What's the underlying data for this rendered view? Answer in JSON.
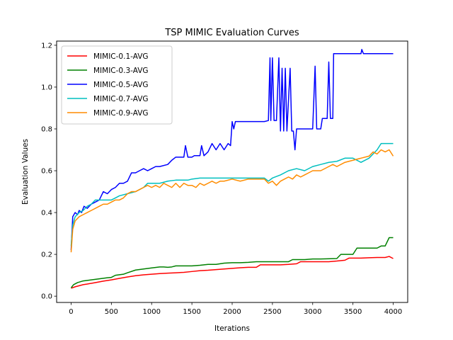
{
  "chart_data": {
    "type": "line",
    "title": "TSP MIMIC Evaluation Curves",
    "xlabel": "Iterations",
    "ylabel": "Evaluation Values",
    "xlim": [
      -180,
      4180
    ],
    "ylim": [
      -0.03,
      1.22
    ],
    "xticks": [
      0,
      500,
      1000,
      1500,
      2000,
      2500,
      3000,
      3500,
      4000
    ],
    "yticks": [
      0.0,
      0.2,
      0.4,
      0.6,
      0.8,
      1.0,
      1.2
    ],
    "xtick_labels": [
      "0",
      "500",
      "1000",
      "1500",
      "2000",
      "2500",
      "3000",
      "3500",
      "4000"
    ],
    "ytick_labels": [
      "0.0",
      "0.2",
      "0.4",
      "0.6",
      "0.8",
      "1.0",
      "1.2"
    ],
    "grid": false,
    "legend_position": "top-left",
    "series": [
      {
        "name": "MIMIC-0.1-AVG",
        "color": "#ff0000",
        "points": [
          [
            0,
            0.038
          ],
          [
            50,
            0.045
          ],
          [
            100,
            0.05
          ],
          [
            150,
            0.055
          ],
          [
            200,
            0.058
          ],
          [
            300,
            0.065
          ],
          [
            400,
            0.072
          ],
          [
            500,
            0.078
          ],
          [
            600,
            0.085
          ],
          [
            700,
            0.092
          ],
          [
            800,
            0.098
          ],
          [
            900,
            0.102
          ],
          [
            1000,
            0.105
          ],
          [
            1100,
            0.108
          ],
          [
            1200,
            0.11
          ],
          [
            1300,
            0.112
          ],
          [
            1400,
            0.114
          ],
          [
            1500,
            0.118
          ],
          [
            1600,
            0.122
          ],
          [
            1700,
            0.124
          ],
          [
            1800,
            0.127
          ],
          [
            1900,
            0.13
          ],
          [
            2000,
            0.133
          ],
          [
            2100,
            0.136
          ],
          [
            2200,
            0.138
          ],
          [
            2300,
            0.138
          ],
          [
            2350,
            0.15
          ],
          [
            2500,
            0.15
          ],
          [
            2600,
            0.15
          ],
          [
            2700,
            0.152
          ],
          [
            2800,
            0.155
          ],
          [
            2850,
            0.165
          ],
          [
            3000,
            0.165
          ],
          [
            3200,
            0.165
          ],
          [
            3300,
            0.168
          ],
          [
            3400,
            0.172
          ],
          [
            3450,
            0.182
          ],
          [
            3600,
            0.182
          ],
          [
            3700,
            0.184
          ],
          [
            3800,
            0.185
          ],
          [
            3900,
            0.185
          ],
          [
            3950,
            0.19
          ],
          [
            4000,
            0.18
          ]
        ]
      },
      {
        "name": "MIMIC-0.3-AVG",
        "color": "#008000",
        "points": [
          [
            0,
            0.04
          ],
          [
            30,
            0.055
          ],
          [
            80,
            0.065
          ],
          [
            150,
            0.073
          ],
          [
            250,
            0.078
          ],
          [
            350,
            0.083
          ],
          [
            450,
            0.088
          ],
          [
            500,
            0.09
          ],
          [
            550,
            0.1
          ],
          [
            650,
            0.105
          ],
          [
            700,
            0.112
          ],
          [
            800,
            0.125
          ],
          [
            900,
            0.13
          ],
          [
            1000,
            0.135
          ],
          [
            1100,
            0.14
          ],
          [
            1150,
            0.14
          ],
          [
            1200,
            0.138
          ],
          [
            1250,
            0.14
          ],
          [
            1300,
            0.145
          ],
          [
            1500,
            0.145
          ],
          [
            1600,
            0.148
          ],
          [
            1700,
            0.152
          ],
          [
            1800,
            0.152
          ],
          [
            1900,
            0.158
          ],
          [
            2000,
            0.16
          ],
          [
            2100,
            0.16
          ],
          [
            2200,
            0.162
          ],
          [
            2300,
            0.165
          ],
          [
            2500,
            0.165
          ],
          [
            2700,
            0.165
          ],
          [
            2750,
            0.175
          ],
          [
            2900,
            0.175
          ],
          [
            3000,
            0.178
          ],
          [
            3100,
            0.178
          ],
          [
            3300,
            0.18
          ],
          [
            3350,
            0.2
          ],
          [
            3500,
            0.2
          ],
          [
            3550,
            0.23
          ],
          [
            3700,
            0.23
          ],
          [
            3800,
            0.23
          ],
          [
            3850,
            0.24
          ],
          [
            3900,
            0.24
          ],
          [
            3950,
            0.28
          ],
          [
            4000,
            0.28
          ]
        ]
      },
      {
        "name": "MIMIC-0.5-AVG",
        "color": "#0000ff",
        "points": [
          [
            0,
            0.22
          ],
          [
            10,
            0.3
          ],
          [
            20,
            0.38
          ],
          [
            50,
            0.4
          ],
          [
            80,
            0.39
          ],
          [
            100,
            0.41
          ],
          [
            130,
            0.4
          ],
          [
            160,
            0.43
          ],
          [
            200,
            0.42
          ],
          [
            250,
            0.44
          ],
          [
            300,
            0.45
          ],
          [
            350,
            0.46
          ],
          [
            400,
            0.5
          ],
          [
            450,
            0.49
          ],
          [
            500,
            0.51
          ],
          [
            550,
            0.52
          ],
          [
            600,
            0.54
          ],
          [
            650,
            0.54
          ],
          [
            700,
            0.55
          ],
          [
            750,
            0.59
          ],
          [
            800,
            0.59
          ],
          [
            850,
            0.6
          ],
          [
            900,
            0.61
          ],
          [
            950,
            0.6
          ],
          [
            1000,
            0.61
          ],
          [
            1050,
            0.62
          ],
          [
            1100,
            0.62
          ],
          [
            1200,
            0.63
          ],
          [
            1250,
            0.65
          ],
          [
            1300,
            0.665
          ],
          [
            1400,
            0.665
          ],
          [
            1420,
            0.72
          ],
          [
            1450,
            0.665
          ],
          [
            1500,
            0.665
          ],
          [
            1530,
            0.672
          ],
          [
            1600,
            0.672
          ],
          [
            1620,
            0.72
          ],
          [
            1650,
            0.672
          ],
          [
            1700,
            0.69
          ],
          [
            1750,
            0.73
          ],
          [
            1800,
            0.7
          ],
          [
            1850,
            0.73
          ],
          [
            1900,
            0.7
          ],
          [
            1950,
            0.73
          ],
          [
            1980,
            0.72
          ],
          [
            2000,
            0.835
          ],
          [
            2020,
            0.8
          ],
          [
            2040,
            0.835
          ],
          [
            2100,
            0.835
          ],
          [
            2200,
            0.835
          ],
          [
            2300,
            0.835
          ],
          [
            2400,
            0.835
          ],
          [
            2450,
            0.84
          ],
          [
            2470,
            1.14
          ],
          [
            2480,
            0.84
          ],
          [
            2500,
            1.14
          ],
          [
            2520,
            0.84
          ],
          [
            2550,
            0.84
          ],
          [
            2580,
            1.14
          ],
          [
            2600,
            0.79
          ],
          [
            2620,
            1.09
          ],
          [
            2640,
            0.79
          ],
          [
            2660,
            1.09
          ],
          [
            2680,
            0.79
          ],
          [
            2720,
            1.09
          ],
          [
            2740,
            0.79
          ],
          [
            2760,
            0.79
          ],
          [
            2780,
            0.7
          ],
          [
            2800,
            0.8
          ],
          [
            2900,
            0.8
          ],
          [
            3000,
            0.8
          ],
          [
            3030,
            1.1
          ],
          [
            3050,
            0.8
          ],
          [
            3100,
            0.8
          ],
          [
            3120,
            0.85
          ],
          [
            3180,
            0.85
          ],
          [
            3200,
            1.12
          ],
          [
            3220,
            0.85
          ],
          [
            3250,
            0.85
          ],
          [
            3260,
            1.16
          ],
          [
            3400,
            1.16
          ],
          [
            3500,
            1.16
          ],
          [
            3600,
            1.16
          ],
          [
            3610,
            1.18
          ],
          [
            3630,
            1.16
          ],
          [
            3800,
            1.16
          ],
          [
            4000,
            1.16
          ]
        ]
      },
      {
        "name": "MIMIC-0.7-AVG",
        "color": "#00bfbf",
        "points": [
          [
            0,
            0.24
          ],
          [
            20,
            0.34
          ],
          [
            50,
            0.38
          ],
          [
            100,
            0.4
          ],
          [
            150,
            0.41
          ],
          [
            200,
            0.43
          ],
          [
            250,
            0.44
          ],
          [
            300,
            0.46
          ],
          [
            400,
            0.46
          ],
          [
            500,
            0.46
          ],
          [
            550,
            0.47
          ],
          [
            600,
            0.48
          ],
          [
            700,
            0.49
          ],
          [
            800,
            0.5
          ],
          [
            900,
            0.52
          ],
          [
            950,
            0.54
          ],
          [
            1000,
            0.54
          ],
          [
            1100,
            0.54
          ],
          [
            1200,
            0.55
          ],
          [
            1300,
            0.555
          ],
          [
            1400,
            0.555
          ],
          [
            1450,
            0.555
          ],
          [
            1500,
            0.56
          ],
          [
            1600,
            0.565
          ],
          [
            1800,
            0.565
          ],
          [
            2000,
            0.565
          ],
          [
            2200,
            0.565
          ],
          [
            2400,
            0.565
          ],
          [
            2450,
            0.55
          ],
          [
            2500,
            0.565
          ],
          [
            2600,
            0.58
          ],
          [
            2700,
            0.6
          ],
          [
            2800,
            0.61
          ],
          [
            2900,
            0.6
          ],
          [
            3000,
            0.62
          ],
          [
            3100,
            0.63
          ],
          [
            3200,
            0.64
          ],
          [
            3300,
            0.645
          ],
          [
            3400,
            0.66
          ],
          [
            3500,
            0.66
          ],
          [
            3600,
            0.64
          ],
          [
            3700,
            0.66
          ],
          [
            3800,
            0.7
          ],
          [
            3850,
            0.73
          ],
          [
            3900,
            0.73
          ],
          [
            4000,
            0.73
          ]
        ]
      },
      {
        "name": "MIMIC-0.9-AVG",
        "color": "#ff8c00",
        "points": [
          [
            0,
            0.21
          ],
          [
            20,
            0.32
          ],
          [
            50,
            0.36
          ],
          [
            100,
            0.38
          ],
          [
            150,
            0.39
          ],
          [
            200,
            0.4
          ],
          [
            250,
            0.41
          ],
          [
            300,
            0.42
          ],
          [
            350,
            0.43
          ],
          [
            400,
            0.44
          ],
          [
            450,
            0.44
          ],
          [
            500,
            0.45
          ],
          [
            550,
            0.46
          ],
          [
            600,
            0.46
          ],
          [
            650,
            0.47
          ],
          [
            700,
            0.49
          ],
          [
            750,
            0.5
          ],
          [
            800,
            0.5
          ],
          [
            850,
            0.51
          ],
          [
            900,
            0.52
          ],
          [
            950,
            0.53
          ],
          [
            1000,
            0.52
          ],
          [
            1050,
            0.53
          ],
          [
            1100,
            0.52
          ],
          [
            1150,
            0.54
          ],
          [
            1200,
            0.53
          ],
          [
            1250,
            0.52
          ],
          [
            1300,
            0.54
          ],
          [
            1350,
            0.52
          ],
          [
            1400,
            0.54
          ],
          [
            1450,
            0.53
          ],
          [
            1500,
            0.53
          ],
          [
            1550,
            0.52
          ],
          [
            1600,
            0.54
          ],
          [
            1650,
            0.53
          ],
          [
            1700,
            0.54
          ],
          [
            1750,
            0.55
          ],
          [
            1800,
            0.54
          ],
          [
            1850,
            0.55
          ],
          [
            1900,
            0.55
          ],
          [
            2000,
            0.56
          ],
          [
            2100,
            0.55
          ],
          [
            2200,
            0.56
          ],
          [
            2300,
            0.56
          ],
          [
            2400,
            0.56
          ],
          [
            2450,
            0.54
          ],
          [
            2500,
            0.55
          ],
          [
            2550,
            0.53
          ],
          [
            2600,
            0.55
          ],
          [
            2650,
            0.56
          ],
          [
            2700,
            0.57
          ],
          [
            2750,
            0.56
          ],
          [
            2800,
            0.58
          ],
          [
            2850,
            0.57
          ],
          [
            2900,
            0.58
          ],
          [
            2950,
            0.59
          ],
          [
            3000,
            0.6
          ],
          [
            3100,
            0.6
          ],
          [
            3200,
            0.62
          ],
          [
            3250,
            0.63
          ],
          [
            3300,
            0.62
          ],
          [
            3400,
            0.64
          ],
          [
            3500,
            0.65
          ],
          [
            3600,
            0.66
          ],
          [
            3700,
            0.67
          ],
          [
            3750,
            0.69
          ],
          [
            3800,
            0.68
          ],
          [
            3850,
            0.7
          ],
          [
            3900,
            0.69
          ],
          [
            3950,
            0.7
          ],
          [
            4000,
            0.67
          ]
        ]
      }
    ]
  }
}
